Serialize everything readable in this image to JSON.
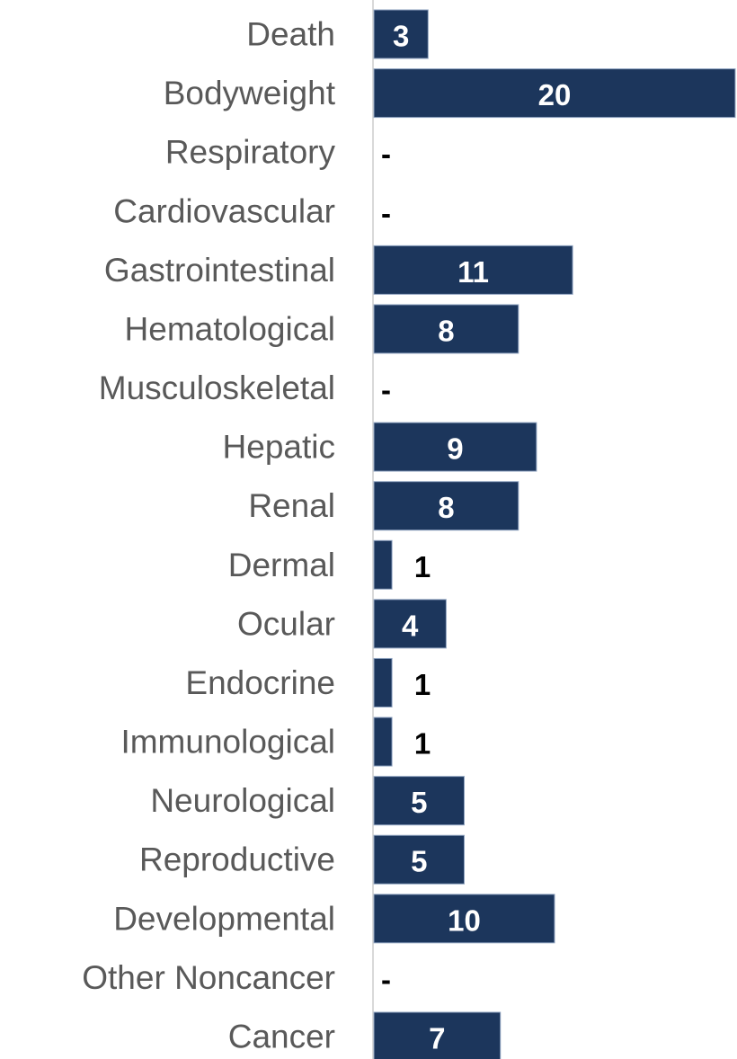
{
  "chart_data": {
    "type": "hbar",
    "categories": [
      "Death",
      "Bodyweight",
      "Respiratory",
      "Cardiovascular",
      "Gastrointestinal",
      "Hematological",
      "Musculoskeletal",
      "Hepatic",
      "Renal",
      "Dermal",
      "Ocular",
      "Endocrine",
      "Immunological",
      "Neurological",
      "Reproductive",
      "Developmental",
      "Other Noncancer",
      "Cancer"
    ],
    "values": [
      3,
      20,
      0,
      0,
      11,
      8,
      0,
      9,
      8,
      1,
      4,
      1,
      1,
      5,
      5,
      10,
      0,
      7
    ],
    "value_labels": [
      "3",
      "20",
      "-",
      "-",
      "11",
      "8",
      "-",
      "9",
      "8",
      "1",
      "4",
      "1",
      "1",
      "5",
      "5",
      "10",
      "-",
      "7"
    ],
    "color": "#1c365c",
    "xlim": [
      0,
      20
    ]
  }
}
